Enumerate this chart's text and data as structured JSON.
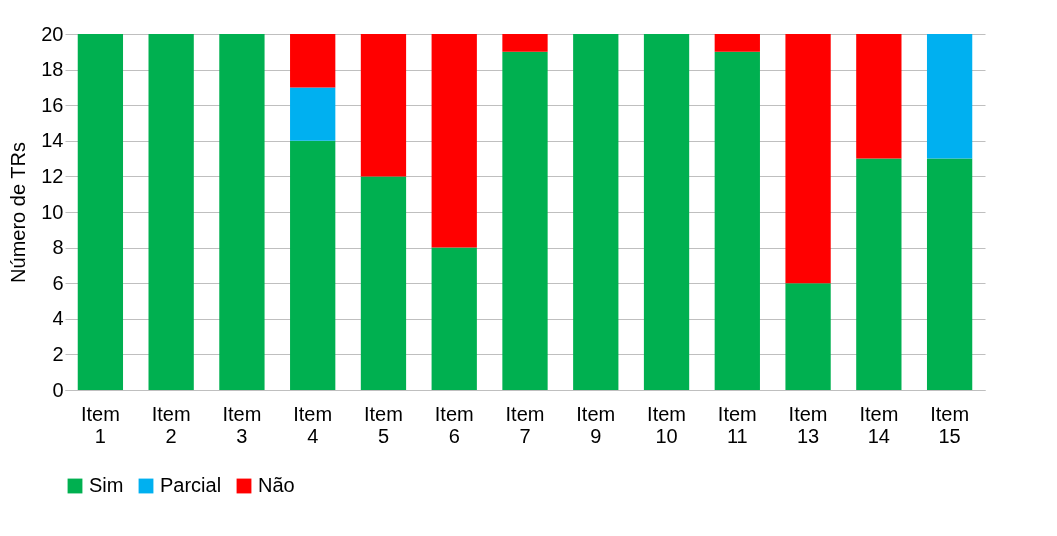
{
  "chart_data": {
    "type": "bar",
    "stacked": true,
    "ylabel": "Número de TRs",
    "categories": [
      "Item 1",
      "Item 2",
      "Item 3",
      "Item 4",
      "Item 5",
      "Item 6",
      "Item 7",
      "Item 9",
      "Item 10",
      "Item 11",
      "Item 13",
      "Item 14",
      "Item 15"
    ],
    "series": [
      {
        "name": "Sim",
        "color": "#00b050",
        "values": [
          20,
          20,
          20,
          14,
          12,
          8,
          19,
          20,
          20,
          19,
          6,
          13,
          13
        ]
      },
      {
        "name": "Parcial",
        "color": "#00b0f0",
        "values": [
          0,
          0,
          0,
          3,
          0,
          0,
          0,
          0,
          0,
          0,
          0,
          0,
          7
        ]
      },
      {
        "name": "Não",
        "color": "#ff0000",
        "values": [
          0,
          0,
          0,
          3,
          8,
          12,
          1,
          0,
          0,
          1,
          14,
          7,
          0
        ]
      }
    ],
    "ylim": [
      0,
      20
    ],
    "yticks": [
      0,
      2,
      4,
      6,
      8,
      10,
      12,
      14,
      16,
      18,
      20
    ],
    "grid": "y",
    "legend": "bottom"
  }
}
